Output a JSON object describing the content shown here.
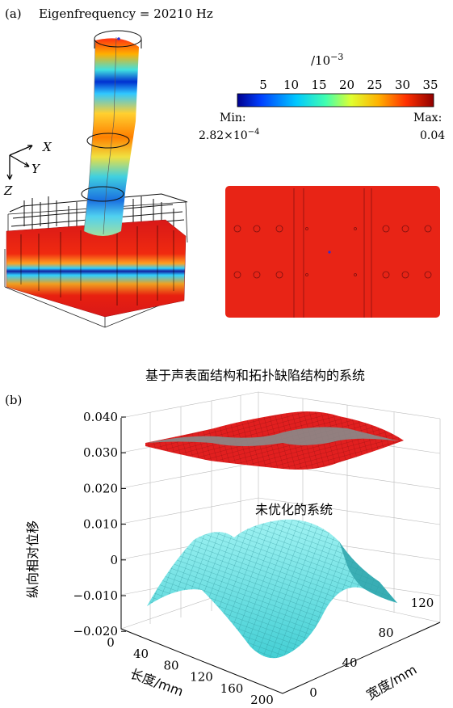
{
  "panel_a": {
    "label": "(a)",
    "eigen_label": "Eigenfrequency = 20210 Hz",
    "colorbar": {
      "unit": "/10",
      "exponent": "−3",
      "ticks": [
        "5",
        "10",
        "15",
        "20",
        "25",
        "30",
        "35"
      ],
      "min_label": "Min:",
      "min_value": "2.82×10",
      "min_exp": "−4",
      "max_label": "Max:",
      "max_value": "0.04"
    },
    "axes": {
      "x": "X",
      "y": "Y",
      "z": "Z"
    },
    "colors": {
      "field": "#e52218",
      "low": "#1a1aa8",
      "mid": "#33ccd8",
      "high": "#f0a020"
    }
  },
  "panel_b": {
    "label": "(b)",
    "label_top": "基于声表面结构和拓扑缺陷结构的系统",
    "label_mid": "未优化的系统",
    "z_axis_label": "纵向相对位移",
    "x_axis_label": "长度/mm",
    "y_axis_label": "宽度/mm",
    "z_ticks": [
      "0.040",
      "0.030",
      "0.020",
      "0.010",
      "0",
      "−0.010",
      "−0.020"
    ],
    "x_ticks": [
      "0",
      "40",
      "80",
      "120",
      "160",
      "200"
    ],
    "y_ticks": [
      "0",
      "40",
      "80",
      "120"
    ],
    "colors": {
      "top_surface": "#e02020",
      "top_shade": "#8a8a8a",
      "bottom_surface": "#6fe3e6"
    }
  }
}
